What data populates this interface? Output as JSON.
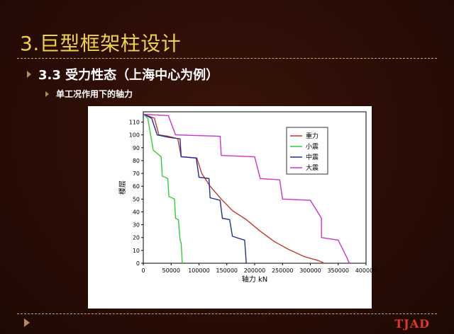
{
  "slide": {
    "title": "3.巨型框架柱设计",
    "bullet1": "3.3 受力性态（上海中心为例）",
    "bullet2": "单工况作用下的轴力",
    "logo": "TJAD",
    "colors": {
      "title": "#f0d24a",
      "background": "#2a0d06",
      "logo": "#e03a25",
      "rule": "#c7a86a"
    }
  },
  "chart_data": {
    "type": "line",
    "xlabel": "轴力 kN",
    "ylabel": "楼层",
    "xlim": [
      0,
      400000
    ],
    "ylim": [
      0,
      118
    ],
    "xticks": [
      0,
      50000,
      100000,
      150000,
      200000,
      250000,
      300000,
      350000,
      400000
    ],
    "yticks": [
      0,
      10,
      20,
      30,
      40,
      50,
      60,
      70,
      80,
      90,
      100,
      110
    ],
    "legend_position": "top-right",
    "series": [
      {
        "name": "重力",
        "color": "#c0392b",
        "points": [
          [
            2000,
            116
          ],
          [
            20000,
            113
          ],
          [
            28000,
            100
          ],
          [
            45000,
            99
          ],
          [
            62000,
            97
          ],
          [
            68000,
            83
          ],
          [
            96000,
            82
          ],
          [
            105000,
            70
          ],
          [
            120000,
            60
          ],
          [
            140000,
            50
          ],
          [
            160000,
            41
          ],
          [
            185000,
            34
          ],
          [
            210000,
            25
          ],
          [
            235000,
            17
          ],
          [
            260000,
            11
          ],
          [
            290000,
            5
          ],
          [
            315000,
            2
          ],
          [
            325000,
            0
          ]
        ]
      },
      {
        "name": "小震",
        "color": "#33cc33",
        "points": [
          [
            1000,
            116
          ],
          [
            8000,
            113
          ],
          [
            12000,
            103
          ],
          [
            18000,
            88
          ],
          [
            32000,
            83
          ],
          [
            34000,
            68
          ],
          [
            44000,
            66
          ],
          [
            46000,
            52
          ],
          [
            56000,
            50
          ],
          [
            58000,
            35
          ],
          [
            63000,
            34
          ],
          [
            66000,
            18
          ],
          [
            68000,
            16
          ],
          [
            70000,
            0
          ]
        ]
      },
      {
        "name": "中震",
        "color": "#1f2f9a",
        "points": [
          [
            1000,
            116
          ],
          [
            15000,
            113
          ],
          [
            25000,
            100
          ],
          [
            47000,
            98
          ],
          [
            66000,
            97
          ],
          [
            68000,
            83
          ],
          [
            95000,
            82
          ],
          [
            100000,
            67
          ],
          [
            118000,
            66
          ],
          [
            120000,
            51
          ],
          [
            138000,
            49
          ],
          [
            142000,
            35
          ],
          [
            155000,
            34
          ],
          [
            160000,
            21
          ],
          [
            182000,
            18
          ],
          [
            185000,
            0
          ]
        ]
      },
      {
        "name": "大震",
        "color": "#cc33cc",
        "points": [
          [
            1000,
            116
          ],
          [
            45000,
            115
          ],
          [
            58000,
            100
          ],
          [
            138000,
            99
          ],
          [
            140000,
            84
          ],
          [
            200000,
            83
          ],
          [
            210000,
            66
          ],
          [
            245000,
            65
          ],
          [
            250000,
            50
          ],
          [
            300000,
            49
          ],
          [
            320000,
            35
          ],
          [
            320000,
            20
          ],
          [
            350000,
            18
          ],
          [
            365000,
            5
          ],
          [
            370000,
            0
          ]
        ]
      }
    ]
  }
}
